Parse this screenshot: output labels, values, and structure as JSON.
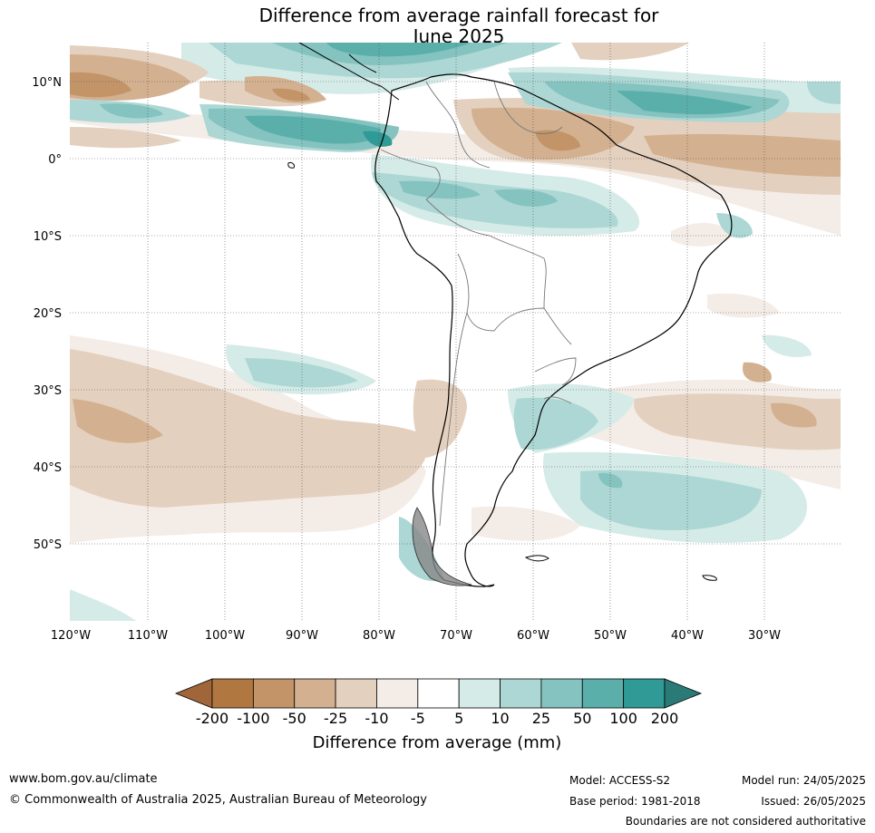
{
  "title_line1": "Difference from average rainfall forecast for",
  "title_line2": "June 2025",
  "lat_labels": [
    "10°N",
    "0°",
    "10°S",
    "20°S",
    "30°S",
    "40°S",
    "50°S"
  ],
  "lon_labels": [
    "120°W",
    "110°W",
    "100°W",
    "90°W",
    "80°W",
    "70°W",
    "60°W",
    "50°W",
    "40°W",
    "30°W"
  ],
  "legend": {
    "title": "Difference from average (mm)",
    "ticks": [
      "-200",
      "-100",
      "-50",
      "-25",
      "-10",
      "-5",
      "5",
      "10",
      "25",
      "50",
      "100",
      "200"
    ],
    "colors": [
      "#a0663a",
      "#b07840",
      "#c29468",
      "#d3b090",
      "#e4d0be",
      "#f4ece6",
      "#ffffff",
      "#d5ebe8",
      "#acd7d4",
      "#84c3bf",
      "#5aafab",
      "#309a96",
      "#2a7a77"
    ]
  },
  "footer": {
    "url": "www.bom.gov.au/climate",
    "copyright": "© Commonwealth of Australia 2025, Australian Bureau of Meteorology",
    "model": "Model: ACCESS-S2",
    "base_period": "Base period: 1981-2018",
    "model_run": "Model run: 24/05/2025",
    "issued": "Issued: 26/05/2025",
    "disclaimer": "Boundaries are not considered authoritative"
  }
}
